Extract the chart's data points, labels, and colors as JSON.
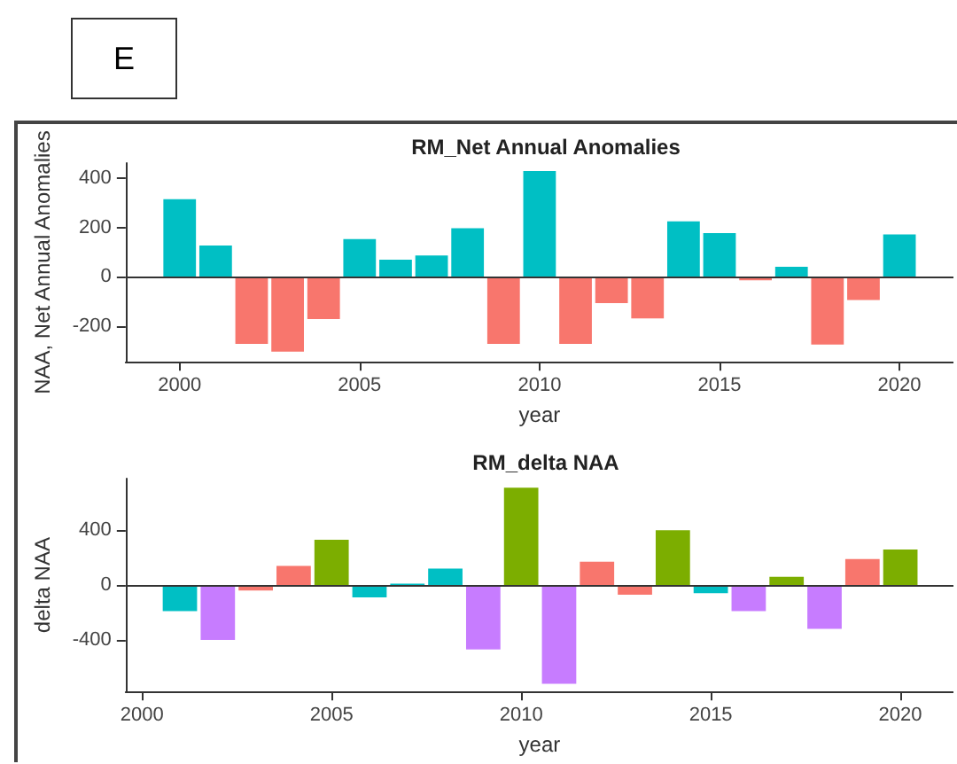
{
  "chart_data": [
    {
      "type": "bar",
      "title": "RM_Net Annual Anomalies",
      "xlabel": "year",
      "ylabel": "NAA, Net Annual Anomalies",
      "annotations": [
        "E"
      ],
      "x": [
        2000,
        2001,
        2002,
        2003,
        2004,
        2005,
        2006,
        2007,
        2008,
        2009,
        2010,
        2011,
        2012,
        2013,
        2014,
        2015,
        2016,
        2017,
        2018,
        2019,
        2020
      ],
      "values": [
        316,
        128,
        -272,
        -304,
        -171,
        154,
        70,
        87,
        198,
        -272,
        431,
        -272,
        -106,
        -169,
        226,
        178,
        -14,
        41,
        -275,
        -94,
        173
      ],
      "colors": [
        "#00bfc4",
        "#00bfc4",
        "#f8766d",
        "#f8766d",
        "#f8766d",
        "#00bfc4",
        "#00bfc4",
        "#00bfc4",
        "#00bfc4",
        "#f8766d",
        "#00bfc4",
        "#f8766d",
        "#f8766d",
        "#f8766d",
        "#00bfc4",
        "#00bfc4",
        "#f8766d",
        "#00bfc4",
        "#f8766d",
        "#f8766d",
        "#00bfc4"
      ],
      "xlim": [
        1998.5,
        2021.5
      ],
      "xticks": [
        2000,
        2005,
        2010,
        2015,
        2020
      ],
      "ylim": [
        -345,
        463
      ],
      "yticks": [
        -200,
        0,
        200,
        400
      ],
      "ref_lines": [
        {
          "axis": "y",
          "value": 0,
          "color": "#333333"
        }
      ],
      "grid": false
    },
    {
      "type": "bar",
      "title": "RM_delta NAA",
      "xlabel": "year",
      "ylabel": "delta NAA",
      "x": [
        2001,
        2002,
        2003,
        2004,
        2005,
        2006,
        2007,
        2008,
        2009,
        2010,
        2011,
        2012,
        2013,
        2014,
        2015,
        2016,
        2017,
        2018,
        2019,
        2020
      ],
      "values": [
        -190,
        -400,
        -40,
        140,
        330,
        -90,
        10,
        120,
        -470,
        710,
        -720,
        170,
        -70,
        400,
        -60,
        -190,
        60,
        -320,
        190,
        260
      ],
      "colors": [
        "#00bfc4",
        "#c77cff",
        "#f8766d",
        "#f8766d",
        "#7cae00",
        "#00bfc4",
        "#00bfc4",
        "#00bfc4",
        "#c77cff",
        "#7cae00",
        "#c77cff",
        "#f8766d",
        "#f8766d",
        "#7cae00",
        "#00bfc4",
        "#c77cff",
        "#7cae00",
        "#c77cff",
        "#f8766d",
        "#7cae00"
      ],
      "xlim": [
        1999.57,
        2021.4
      ],
      "xticks": [
        2000,
        2005,
        2010,
        2015,
        2020
      ],
      "ylim": [
        -777,
        777
      ],
      "yticks": [
        -400,
        0,
        400
      ],
      "ref_lines": [
        {
          "axis": "y",
          "value": 0,
          "color": "#333333"
        }
      ],
      "grid": false
    }
  ]
}
